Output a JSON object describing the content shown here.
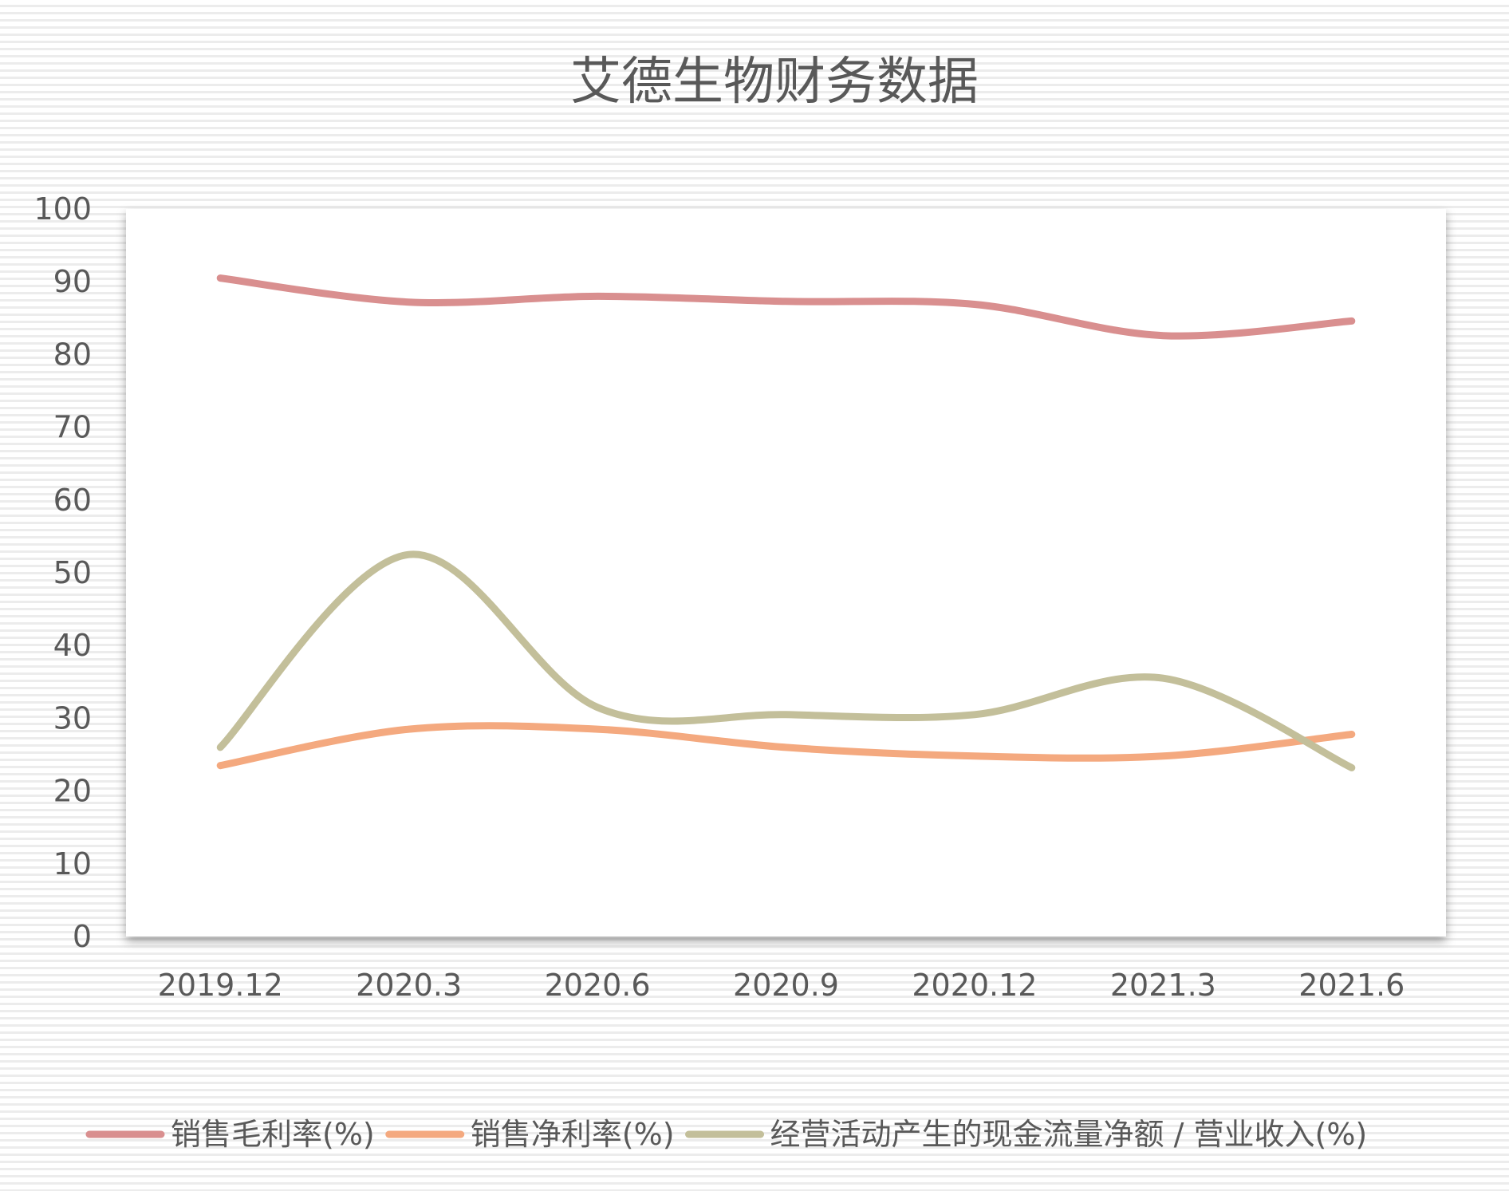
{
  "chart_data": {
    "type": "line",
    "title": "艾德生物财务数据",
    "categories": [
      "2019.12",
      "2020.3",
      "2020.6",
      "2020.9",
      "2020.12",
      "2021.3",
      "2021.6"
    ],
    "ylim": [
      0,
      100
    ],
    "yticks": [
      "0",
      "10",
      "20",
      "30",
      "40",
      "50",
      "60",
      "70",
      "80",
      "90",
      "100"
    ],
    "grid": false,
    "legend_position": "bottom",
    "smooth": true,
    "series": [
      {
        "name": "销售毛利率(%)",
        "color": "#d98f8f",
        "values": [
          90.5,
          87.2,
          88.0,
          87.3,
          86.9,
          82.6,
          84.6
        ]
      },
      {
        "name": "销售净利率(%)",
        "color": "#f4a97f",
        "values": [
          23.5,
          28.5,
          28.5,
          26.0,
          24.8,
          24.8,
          27.8
        ]
      },
      {
        "name": "经营活动产生的现金流量净额 / 营业收入(%)",
        "color": "#c3bf9a",
        "values": [
          26.0,
          52.5,
          31.5,
          30.5,
          30.5,
          35.5,
          23.2
        ]
      }
    ]
  }
}
